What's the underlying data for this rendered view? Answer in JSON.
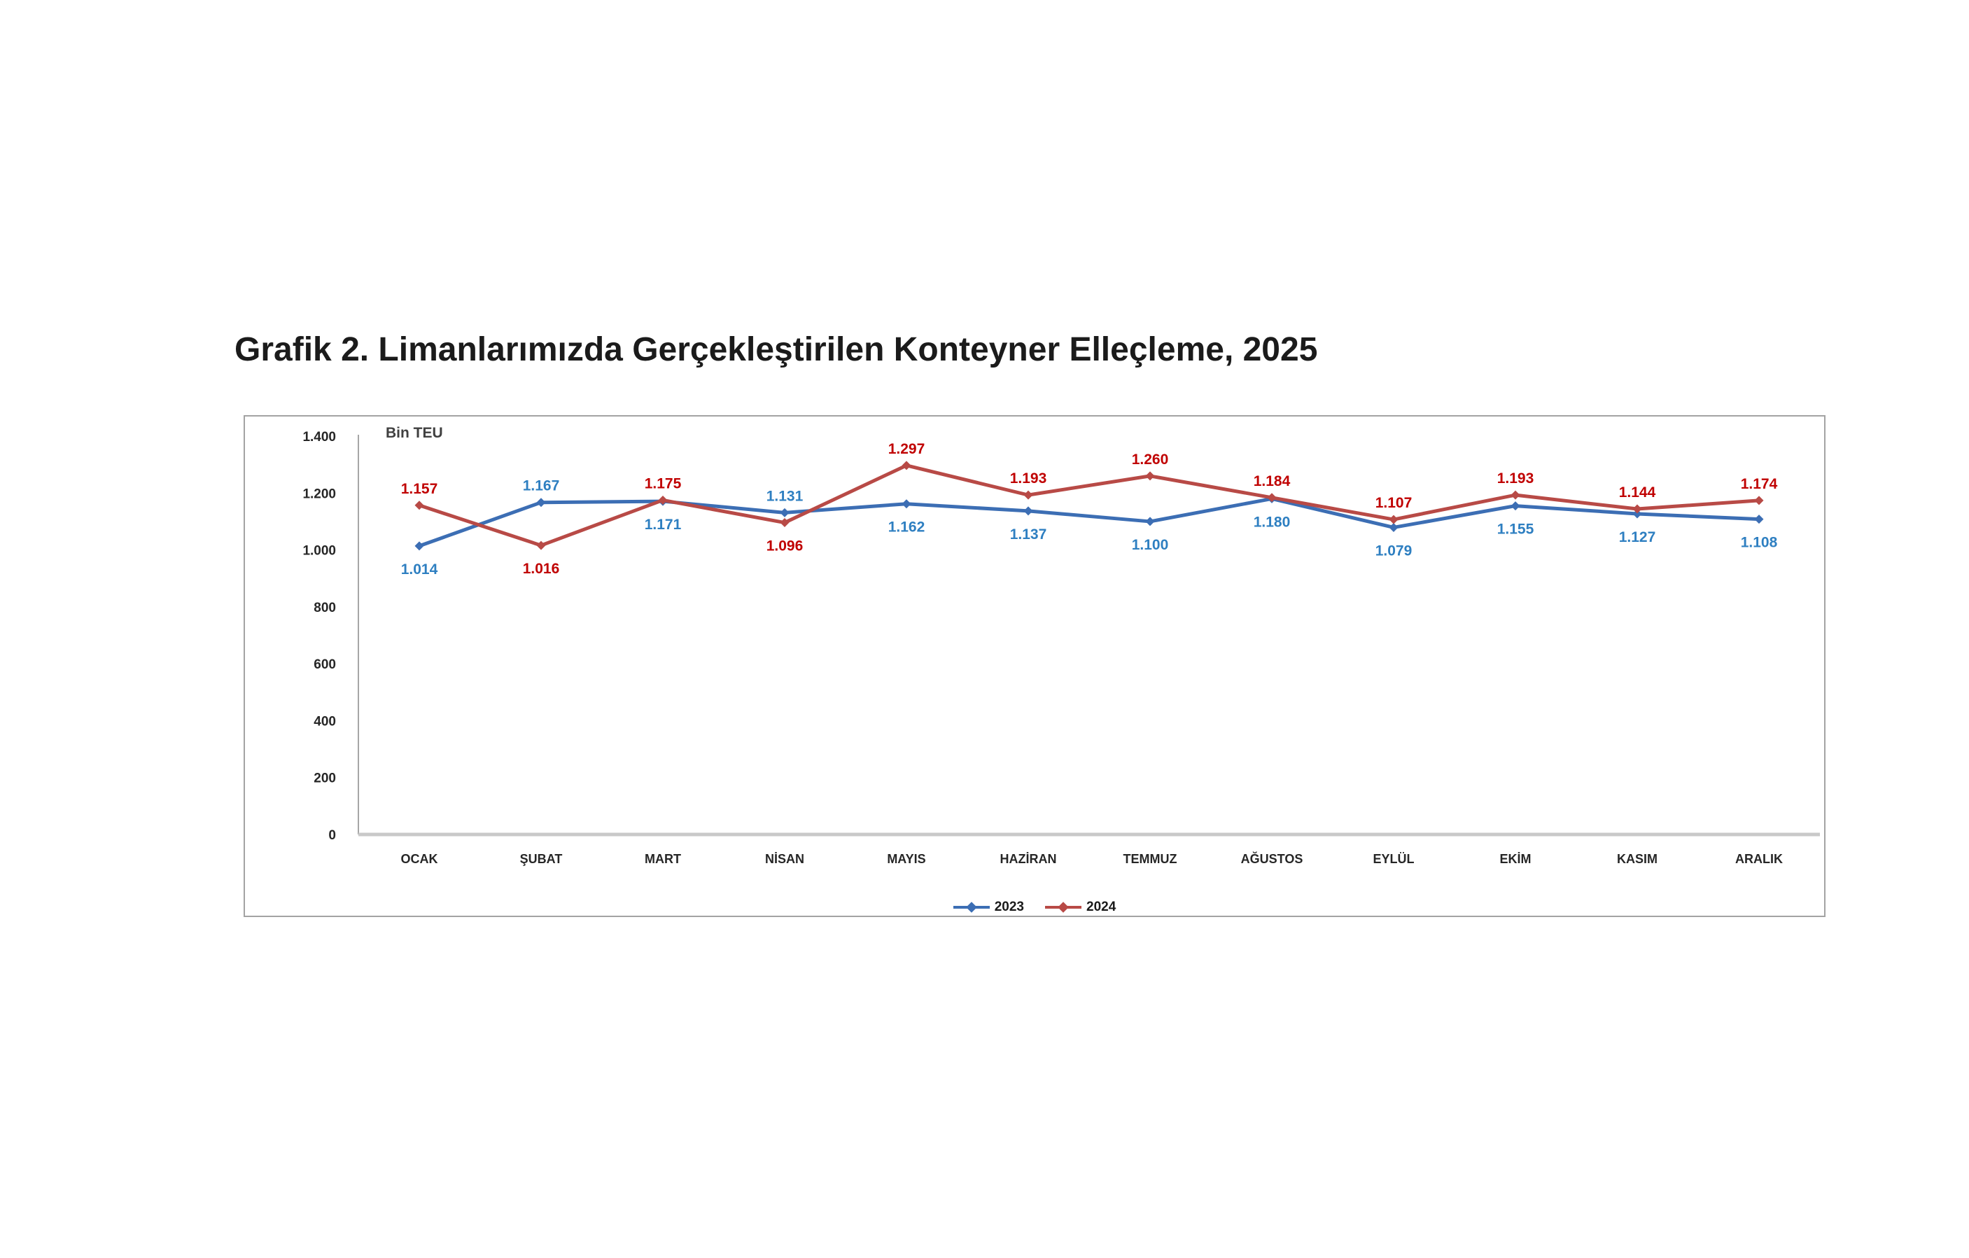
{
  "title": "Grafik 2. Limanlarımızda Gerçekleştirilen Konteyner Elleçleme, 2025",
  "chart_data": {
    "type": "line",
    "title": "Grafik 2. Limanlarımızda Gerçekleştirilen Konteyner Elleçleme, 2025",
    "unit_label": "Bin TEU",
    "categories": [
      "OCAK",
      "ŞUBAT",
      "MART",
      "NİSAN",
      "MAYIS",
      "HAZİRAN",
      "TEMMUZ",
      "AĞUSTOS",
      "EYLÜL",
      "EKİM",
      "KASIM",
      "ARALIK"
    ],
    "series": [
      {
        "name": "2023",
        "color": "#3C6EB4",
        "label_color": "#2E7FC1",
        "values": [
          1014,
          1167,
          1171,
          1131,
          1162,
          1137,
          1100,
          1180,
          1079,
          1155,
          1127,
          1108
        ],
        "labels": [
          "1.014",
          "1.167",
          "1.171",
          "1.131",
          "1.162",
          "1.137",
          "1.100",
          "1.180",
          "1.079",
          "1.155",
          "1.127",
          "1.108"
        ]
      },
      {
        "name": "2024",
        "color": "#B84A46",
        "label_color": "#C00000",
        "values": [
          1157,
          1016,
          1175,
          1096,
          1297,
          1193,
          1260,
          1184,
          1107,
          1193,
          1144,
          1174
        ],
        "labels": [
          "1.157",
          "1.016",
          "1.175",
          "1.096",
          "1.297",
          "1.193",
          "1.260",
          "1.184",
          "1.107",
          "1.193",
          "1.144",
          "1.174"
        ]
      }
    ],
    "y_axis": {
      "min": 0,
      "max": 1400,
      "step": 200,
      "tick_labels": [
        "0",
        "200",
        "400",
        "600",
        "800",
        "1.000",
        "1.200",
        "1.400"
      ]
    },
    "legend": {
      "position": "bottom",
      "entries": [
        "2023",
        "2024"
      ]
    },
    "grid": false,
    "axis_color": "#a6a6a6",
    "x_axis_color": "#c9c9c9",
    "border_color": "#a3a3a3",
    "tick_text_color": "#262626",
    "unit_text_color": "#404040"
  }
}
